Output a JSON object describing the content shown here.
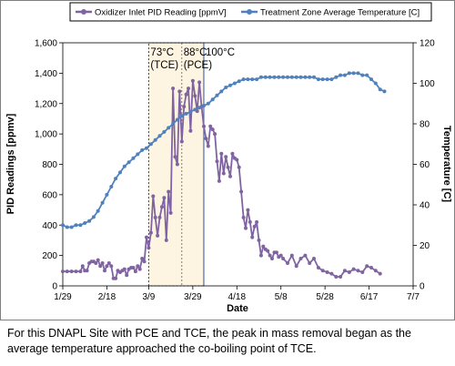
{
  "chart_data": {
    "type": "line",
    "xlabel": "Date",
    "ylabel_left": "PID Readings [ppmv]",
    "ylabel_right": "Temperature [C]",
    "ylim_left": [
      0,
      1600
    ],
    "ylim_right": [
      0,
      120
    ],
    "yticks_left": [
      0,
      200,
      400,
      600,
      800,
      1000,
      1200,
      1400,
      1600
    ],
    "ytick_labels_left": [
      "0",
      "200",
      "400",
      "600",
      "800",
      "1,000",
      "1,200",
      "1,400",
      "1,600"
    ],
    "yticks_right": [
      0,
      20,
      40,
      60,
      80,
      100,
      120
    ],
    "xlim": [
      0,
      159
    ],
    "xticks": [
      0,
      20,
      39,
      59,
      79,
      99,
      119,
      139,
      159
    ],
    "xtick_labels": [
      "1/29",
      "2/18",
      "3/9",
      "3/29",
      "4/18",
      "5/8",
      "5/28",
      "6/17",
      "7/7"
    ],
    "x_units": "days after 1/29",
    "grid": false,
    "legend_position": "top",
    "series": [
      {
        "name": "Oxidizer Inlet PID Reading [ppmV]",
        "axis": "left",
        "color": "#8064a2",
        "marker": "circle",
        "x": [
          0,
          2,
          4,
          6,
          8,
          9,
          10,
          11,
          12,
          13,
          14,
          15,
          16,
          17,
          18,
          19,
          20,
          21,
          22,
          23,
          24,
          25,
          26,
          27,
          28,
          29,
          30,
          31,
          32,
          33,
          34,
          35,
          36,
          37,
          38,
          39,
          40,
          41,
          42,
          43,
          44,
          45,
          46,
          47,
          48,
          49,
          50,
          51,
          52,
          53,
          54,
          55,
          56,
          57,
          58,
          59,
          60,
          61,
          62,
          63,
          64,
          65,
          66,
          67,
          68,
          69,
          70,
          71,
          72,
          73,
          74,
          75,
          76,
          77,
          78,
          79,
          80,
          81,
          82,
          83,
          84,
          85,
          86,
          87,
          88,
          89,
          90,
          91,
          92,
          93,
          94,
          95,
          96,
          97,
          98,
          99,
          100,
          102,
          104,
          106,
          108,
          110,
          112,
          114,
          116,
          118,
          120,
          122,
          124,
          126,
          128,
          130,
          132,
          134,
          136,
          138,
          140,
          142,
          144
        ],
        "y": [
          95,
          95,
          95,
          95,
          95,
          130,
          100,
          100,
          150,
          160,
          160,
          150,
          170,
          130,
          150,
          100,
          130,
          150,
          130,
          50,
          50,
          100,
          90,
          100,
          110,
          70,
          110,
          120,
          120,
          95,
          130,
          110,
          180,
          160,
          320,
          250,
          350,
          590,
          450,
          330,
          450,
          520,
          580,
          300,
          620,
          480,
          1300,
          850,
          800,
          1280,
          950,
          1180,
          1260,
          1300,
          1020,
          1350,
          1250,
          1150,
          1340,
          1180,
          1050,
          970,
          920,
          1050,
          1030,
          1000,
          820,
          690,
          870,
          740,
          850,
          780,
          720,
          870,
          840,
          830,
          780,
          620,
          450,
          380,
          500,
          420,
          320,
          390,
          420,
          300,
          200,
          260,
          240,
          230,
          200,
          180,
          220,
          220,
          190,
          200,
          180,
          150,
          200,
          130,
          180,
          200,
          150,
          180,
          120,
          100,
          90,
          80,
          60,
          60,
          100,
          90,
          110,
          100,
          90,
          130,
          120,
          100,
          80
        ]
      },
      {
        "name": "Treatment Zone Average Temperature [C]",
        "axis": "right",
        "color": "#4f81bd",
        "marker": "circle",
        "x": [
          0,
          2,
          4,
          6,
          8,
          10,
          12,
          14,
          16,
          18,
          20,
          22,
          24,
          26,
          28,
          30,
          32,
          34,
          36,
          38,
          40,
          42,
          44,
          46,
          48,
          50,
          52,
          54,
          56,
          58,
          60,
          62,
          64,
          66,
          68,
          70,
          72,
          74,
          76,
          78,
          80,
          82,
          84,
          86,
          88,
          90,
          92,
          94,
          96,
          98,
          100,
          102,
          104,
          106,
          108,
          110,
          112,
          114,
          116,
          118,
          120,
          122,
          124,
          126,
          128,
          130,
          132,
          134,
          136,
          138,
          140,
          142,
          144,
          146
        ],
        "y": [
          30,
          29,
          29,
          30,
          30,
          31,
          32,
          34,
          37,
          41,
          45,
          49,
          53,
          56,
          59,
          61,
          63,
          65,
          67,
          68,
          70,
          72,
          74,
          76,
          78,
          80,
          82,
          84,
          85,
          86,
          87,
          88,
          89,
          90,
          92,
          94,
          96,
          98,
          99,
          100,
          101,
          102,
          102,
          102,
          102,
          103,
          103,
          103,
          103,
          103,
          103,
          103,
          103,
          103,
          103,
          103,
          103,
          103,
          102,
          102,
          102,
          102,
          103,
          104,
          104,
          105,
          105,
          105,
          104,
          104,
          102,
          100,
          97,
          96
        ]
      }
    ],
    "regions": [
      {
        "x": [
          39,
          64
        ],
        "label_lines": [
          "73°C",
          "(TCE)"
        ]
      },
      {
        "x": [
          54,
          64
        ],
        "label_lines": [
          "88°C",
          "(PCE)"
        ]
      },
      {
        "x": [
          64,
          64
        ],
        "label_lines": [
          "100°C"
        ]
      }
    ]
  },
  "caption": "For this DNAPL Site with PCE and TCE, the peak in mass removal began as the average temperature approached the co-boiling point of TCE."
}
